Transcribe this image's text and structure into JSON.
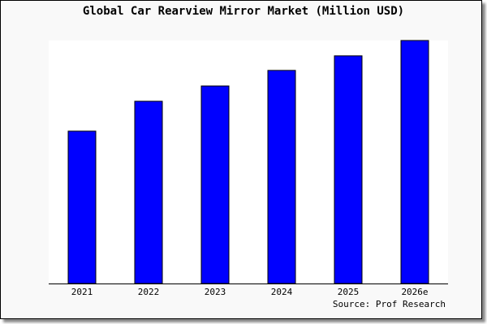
{
  "chart_data": {
    "type": "bar",
    "title": "Global Car Rearview Mirror Market (Million USD)",
    "categories": [
      "2021",
      "2022",
      "2023",
      "2024",
      "2025",
      "2026e"
    ],
    "values": [
      62.7,
      75,
      81.3,
      87.7,
      93.7,
      100
    ],
    "ylim": [
      0,
      100
    ],
    "xlabel": "",
    "ylabel": "",
    "grid": false,
    "bar_color": "#0000ff",
    "source": "Source: Prof Research"
  }
}
